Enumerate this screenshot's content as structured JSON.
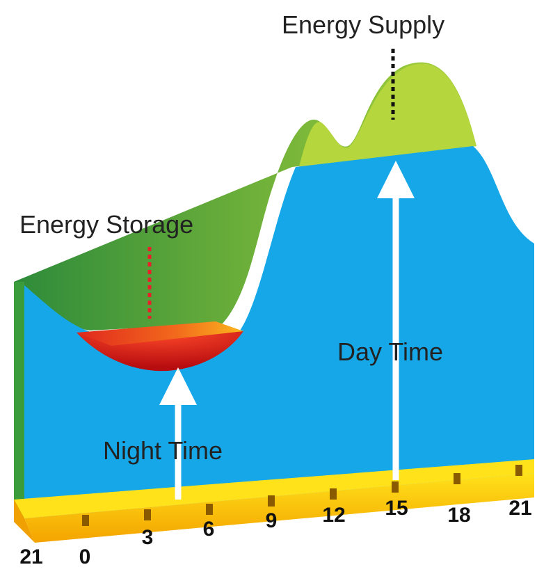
{
  "labels": {
    "supply": "Energy Supply",
    "storage": "Energy Storage",
    "day": "Day Time",
    "night": "Night Time"
  },
  "hours": [
    "21",
    "0",
    "3",
    "6",
    "9",
    "12",
    "15",
    "18",
    "21"
  ]
}
